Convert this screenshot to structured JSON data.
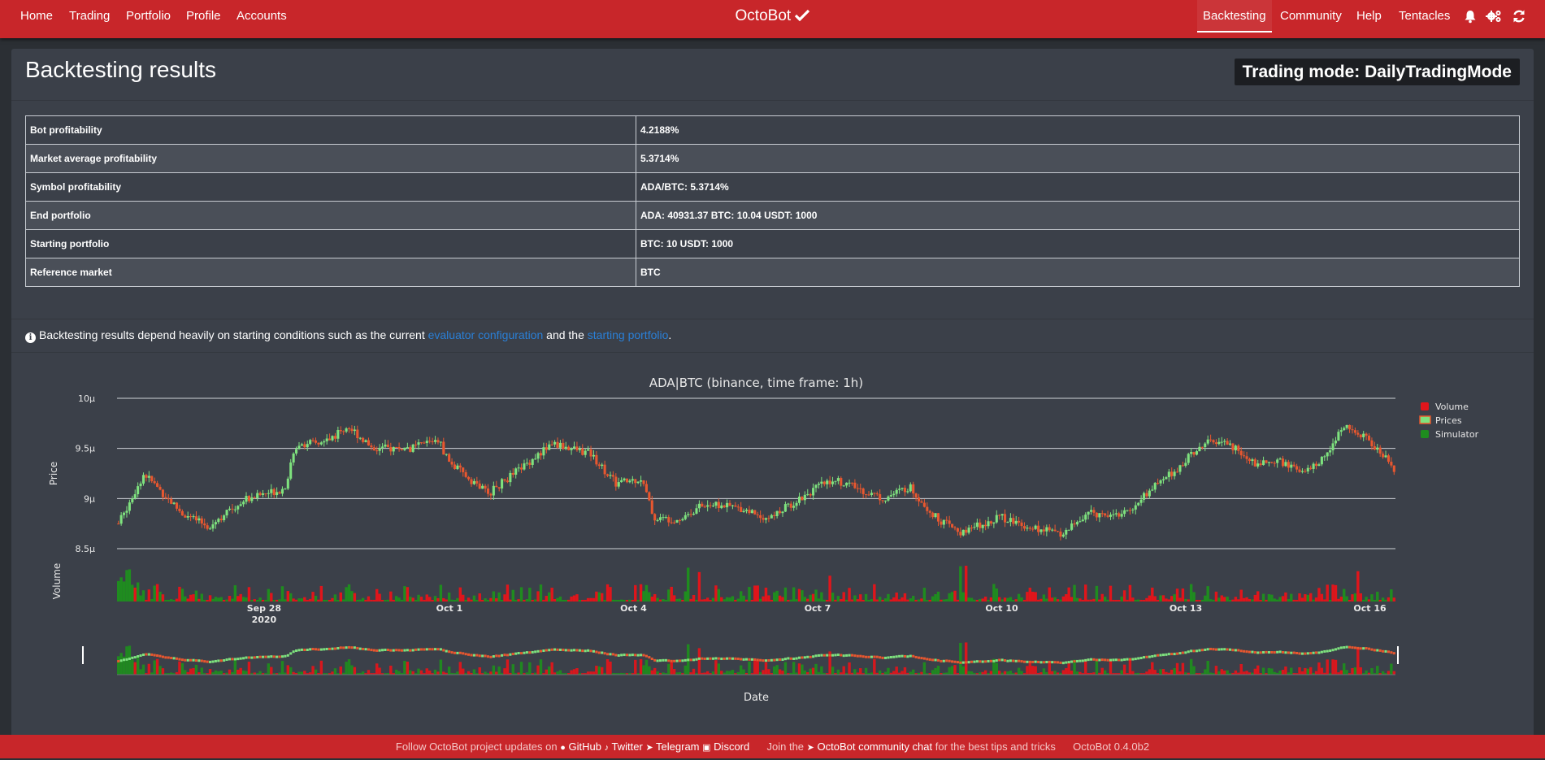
{
  "nav": {
    "left": [
      "Home",
      "Trading",
      "Portfolio",
      "Profile",
      "Accounts"
    ],
    "brand": "OctoBot",
    "brand_icon": "check-icon",
    "right": [
      "Backtesting",
      "Community",
      "Help",
      "Tentacles"
    ],
    "active": "Backtesting",
    "icons": [
      "bell-icon",
      "cogs-icon",
      "sync-icon"
    ]
  },
  "page": {
    "title": "Backtesting results",
    "trading_mode": "Trading mode: DailyTradingMode"
  },
  "results": [
    {
      "label": "Bot profitability",
      "value": "4.2188%"
    },
    {
      "label": "Market average profitability",
      "value": "5.3714%"
    },
    {
      "label": "Symbol profitability",
      "value": "ADA/BTC: 5.3714%"
    },
    {
      "label": "End portfolio",
      "value": "ADA: 40931.37 BTC: 10.04 USDT: 1000"
    },
    {
      "label": "Starting portfolio",
      "value": "BTC: 10 USDT: 1000"
    },
    {
      "label": "Reference market",
      "value": "BTC"
    }
  ],
  "info": {
    "text1": "Backtesting results depend heavily on starting conditions such as the current ",
    "link1": "evaluator configuration",
    "text2": " and the ",
    "link2": "starting portfolio",
    "text3": "."
  },
  "footer": {
    "follow": "Follow OctoBot project updates on",
    "github": "GitHub",
    "twitter": "Twitter",
    "telegram": "Telegram",
    "discord": "Discord",
    "join": "Join the",
    "chat": "OctoBot community chat",
    "tips": "for the best tips and tricks",
    "version": "OctoBot 0.4.0b2"
  },
  "colors": {
    "nav_bg": "#c8262a",
    "card_bg": "#3b4049",
    "link": "#2a7fd6",
    "candle_up": "#7ee27e",
    "candle_down": "#e8572f",
    "volume_red": "#e0151b",
    "volume_green": "#1f8c1f"
  },
  "chart_data": {
    "type": "candlestick",
    "title": "ADA|BTC (binance, time frame: 1h)",
    "xlabel": "Date",
    "ylabel": "Price",
    "volume_label": "Volume",
    "yticks": [
      "10μ",
      "9.5μ",
      "9μ",
      "8.5μ"
    ],
    "ylim": [
      8.5,
      10
    ],
    "xticks": [
      {
        "label": "Sep 28",
        "sub": "2020"
      },
      {
        "label": "Oct 1",
        "sub": ""
      },
      {
        "label": "Oct 4",
        "sub": ""
      },
      {
        "label": "Oct 7",
        "sub": ""
      },
      {
        "label": "Oct 10",
        "sub": ""
      },
      {
        "label": "Oct 13",
        "sub": ""
      },
      {
        "label": "Oct 16",
        "sub": ""
      }
    ],
    "legend": [
      "Volume",
      "Prices",
      "Simulator"
    ],
    "legend_position": "top-right",
    "price_path": [
      [
        0,
        8.75
      ],
      [
        0.02,
        9.25
      ],
      [
        0.05,
        8.85
      ],
      [
        0.07,
        8.72
      ],
      [
        0.1,
        9.0
      ],
      [
        0.13,
        9.1
      ],
      [
        0.14,
        9.55
      ],
      [
        0.16,
        9.55
      ],
      [
        0.18,
        9.72
      ],
      [
        0.2,
        9.5
      ],
      [
        0.23,
        9.5
      ],
      [
        0.25,
        9.6
      ],
      [
        0.26,
        9.35
      ],
      [
        0.29,
        9.05
      ],
      [
        0.32,
        9.35
      ],
      [
        0.34,
        9.55
      ],
      [
        0.37,
        9.45
      ],
      [
        0.39,
        9.15
      ],
      [
        0.32,
        9.35
      ],
      [
        0.41,
        9.2
      ],
      [
        0.42,
        8.8
      ],
      [
        0.44,
        8.8
      ],
      [
        0.46,
        8.95
      ],
      [
        0.49,
        8.9
      ],
      [
        0.51,
        8.8
      ],
      [
        0.54,
        9.05
      ],
      [
        0.56,
        9.2
      ],
      [
        0.58,
        9.1
      ],
      [
        0.6,
        9.0
      ],
      [
        0.62,
        9.12
      ],
      [
        0.64,
        8.82
      ],
      [
        0.66,
        8.65
      ],
      [
        0.69,
        8.82
      ],
      [
        0.72,
        8.7
      ],
      [
        0.74,
        8.65
      ],
      [
        0.76,
        8.85
      ],
      [
        0.79,
        8.85
      ],
      [
        0.81,
        9.1
      ],
      [
        0.83,
        9.3
      ],
      [
        0.85,
        9.55
      ],
      [
        0.87,
        9.55
      ],
      [
        0.89,
        9.35
      ],
      [
        0.91,
        9.38
      ],
      [
        0.93,
        9.25
      ],
      [
        0.95,
        9.45
      ],
      [
        0.96,
        9.75
      ],
      [
        0.98,
        9.58
      ],
      [
        1.0,
        9.3
      ]
    ]
  }
}
